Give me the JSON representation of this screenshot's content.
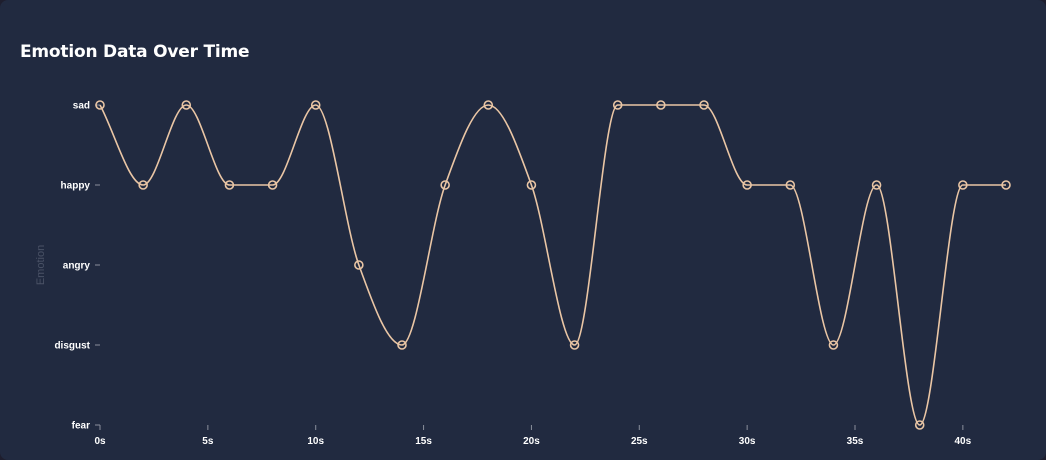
{
  "chart_title": "Emotion Data Over Time",
  "chart_data": {
    "type": "line",
    "title": "Emotion Data Over Time",
    "ylabel": "Emotion",
    "xlabel": "",
    "y_categories": [
      "sad",
      "happy",
      "angry",
      "disgust",
      "fear"
    ],
    "x_unit": "s",
    "xlim": [
      0,
      42
    ],
    "x_ticks": [
      0,
      5,
      10,
      15,
      20,
      25,
      30,
      35,
      40
    ],
    "x_tick_labels": [
      "0s",
      "5s",
      "10s",
      "15s",
      "20s",
      "25s",
      "30s",
      "35s",
      "40s"
    ],
    "series": [
      {
        "x": [
          0,
          2,
          4,
          6,
          8,
          10,
          12,
          14,
          16,
          18,
          20,
          22,
          24,
          26,
          28,
          30,
          32,
          34,
          36,
          38,
          40,
          42
        ],
        "y": [
          "sad",
          "happy",
          "sad",
          "happy",
          "happy",
          "sad",
          "angry",
          "disgust",
          "happy",
          "sad",
          "happy",
          "disgust",
          "sad",
          "sad",
          "sad",
          "happy",
          "happy",
          "disgust",
          "happy",
          "fear",
          "happy",
          "happy"
        ]
      }
    ],
    "line_color": "#eac6a5",
    "background_color": "#212a40",
    "curve": "smooth",
    "grid": false,
    "legend": false
  }
}
